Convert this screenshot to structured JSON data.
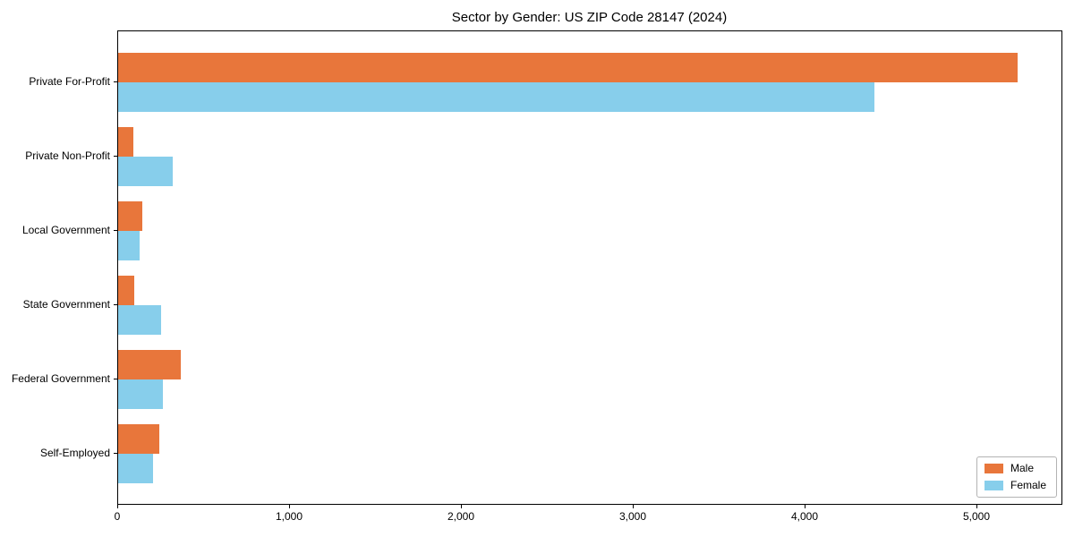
{
  "chart_data": {
    "type": "bar",
    "orientation": "horizontal",
    "title": "Sector by Gender: US ZIP Code 28147 (2024)",
    "categories": [
      "Private For-Profit",
      "Private Non-Profit",
      "Local Government",
      "State Government",
      "Federal Government",
      "Self-Employed"
    ],
    "series": [
      {
        "name": "Male",
        "color": "#E8763B",
        "values": [
          5230,
          90,
          140,
          95,
          365,
          240
        ]
      },
      {
        "name": "Female",
        "color": "#87CEEB",
        "values": [
          4400,
          320,
          125,
          250,
          260,
          205
        ]
      }
    ],
    "xlim": [
      0,
      5492
    ],
    "xticks": [
      0,
      1000,
      2000,
      3000,
      4000,
      5000
    ],
    "xtick_labels": [
      "0",
      "1,000",
      "2,000",
      "3,000",
      "4,000",
      "5,000"
    ],
    "xlabel": "",
    "ylabel": "",
    "grid": false,
    "legend_position": "lower right",
    "axis_color": "#000000",
    "background_color": "#ffffff"
  }
}
